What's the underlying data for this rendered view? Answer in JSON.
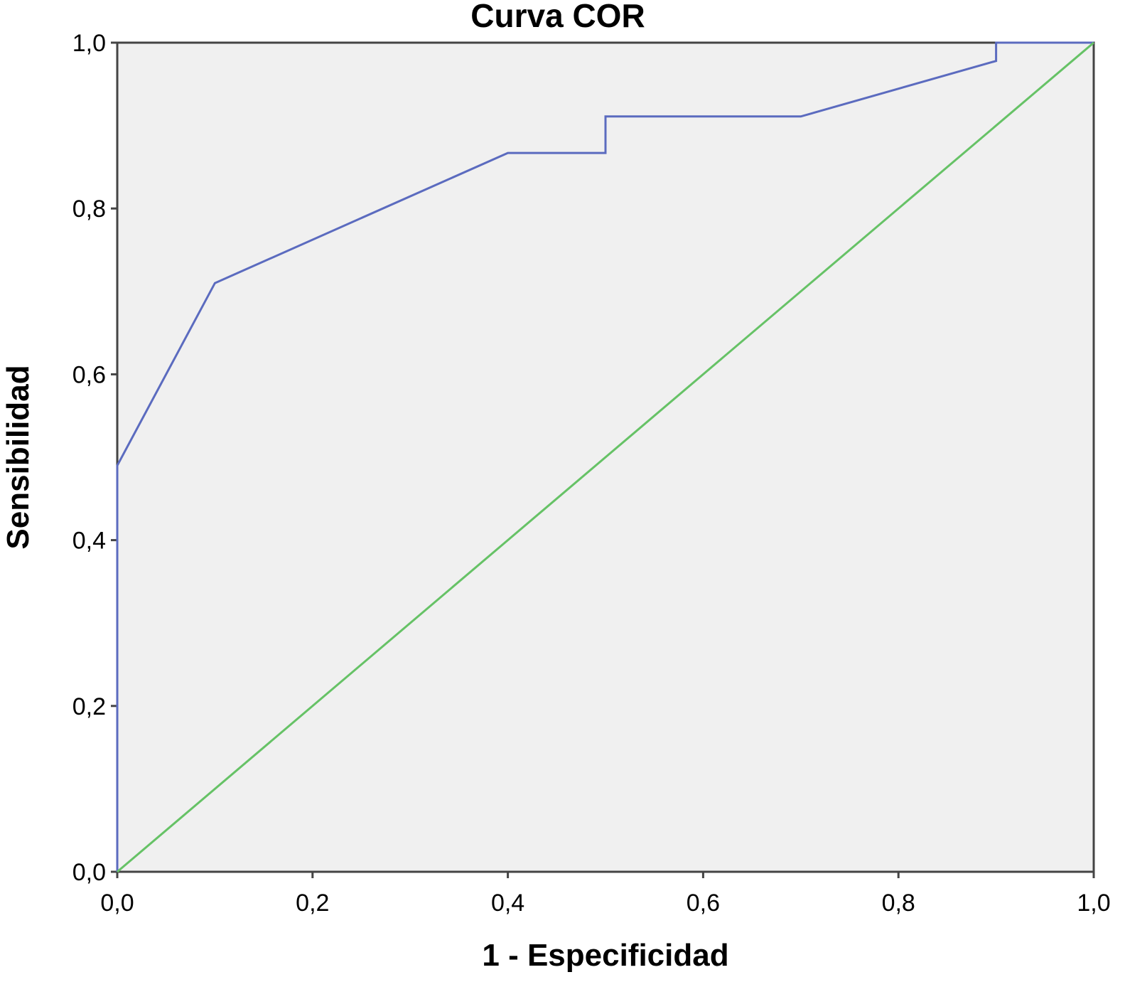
{
  "chart_data": {
    "type": "line",
    "title": "Curva COR",
    "xlabel": "1 - Especificidad",
    "ylabel": "Sensibilidad",
    "xlim": [
      0,
      1
    ],
    "ylim": [
      0,
      1
    ],
    "x_ticks": [
      "0,0",
      "0,2",
      "0,4",
      "0,6",
      "0,8",
      "1,0"
    ],
    "y_ticks": [
      "0,0",
      "0,2",
      "0,4",
      "0,6",
      "0,8",
      "1,0"
    ],
    "grid": false,
    "plot_background": "#f0f0f0",
    "series": [
      {
        "color": "#5b6bbf",
        "x": [
          0,
          0,
          0.1,
          0.4,
          0.5,
          0.5,
          0.7,
          0.9,
          0.9,
          1.0
        ],
        "y": [
          0,
          0.49,
          0.71,
          0.867,
          0.867,
          0.911,
          0.911,
          0.978,
          1.0,
          1.0
        ]
      },
      {
        "color": "#66c266",
        "x": [
          0,
          1
        ],
        "y": [
          0,
          1
        ]
      }
    ]
  }
}
